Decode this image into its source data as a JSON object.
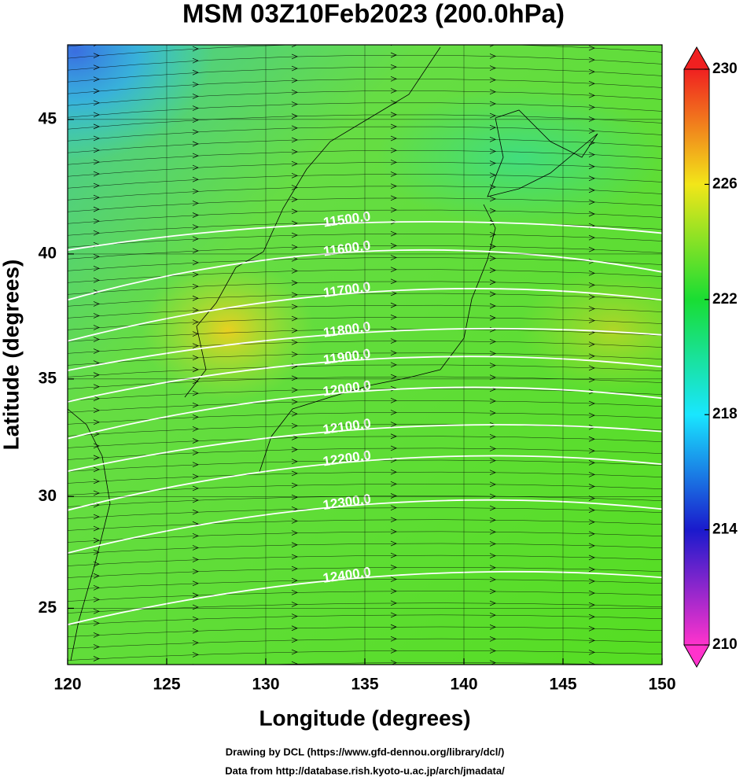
{
  "chart_data": {
    "type": "contour",
    "title": "MSM 03Z10Feb2023 (200.0hPa)",
    "x_label": "Longitude (degrees)",
    "y_label": "Latitude  (degrees)",
    "xlim": [
      120,
      150
    ],
    "ylim": [
      22.4,
      47.6
    ],
    "y_scale": "mercator",
    "xticks": [
      120,
      125,
      130,
      135,
      140,
      145,
      150
    ],
    "yticks": [
      25,
      30,
      35,
      40,
      45
    ],
    "contour_color": "#ffffff",
    "contour_lons": [
      120,
      135,
      150
    ],
    "contours": [
      {
        "value": 11500,
        "label": "11500.0",
        "lats": [
          40.15,
          41.2,
          40.8
        ]
      },
      {
        "value": 11600,
        "label": "11600.0",
        "lats": [
          38.2,
          40.1,
          39.3
        ]
      },
      {
        "value": 11700,
        "label": "11700.0",
        "lats": [
          36.55,
          38.5,
          38.2
        ]
      },
      {
        "value": 11800,
        "label": "11800.0",
        "lats": [
          35.35,
          36.9,
          36.8
        ]
      },
      {
        "value": 11900,
        "label": "11900.0",
        "lats": [
          34.05,
          35.8,
          35.5
        ]
      },
      {
        "value": 12000,
        "label": "12000.0",
        "lats": [
          32.5,
          34.5,
          34.2
        ]
      },
      {
        "value": 12100,
        "label": "12100.0",
        "lats": [
          31.1,
          32.9,
          32.8
        ]
      },
      {
        "value": 12200,
        "label": "12200.0",
        "lats": [
          29.4,
          31.55,
          31.4
        ]
      },
      {
        "value": 12300,
        "label": "12300.0",
        "lats": [
          27.5,
          29.65,
          29.45
        ]
      },
      {
        "value": 12400,
        "label": "12400.0",
        "lats": [
          24.25,
          26.4,
          26.4
        ]
      }
    ],
    "colorbar": {
      "range": [
        210,
        230
      ],
      "ticks": [
        210,
        214,
        218,
        222,
        226,
        230
      ],
      "colors": [
        "#ff33cc",
        "#1a1acc",
        "#19e6ff",
        "#19dd33",
        "#f2e619",
        "#f02020"
      ]
    },
    "credits": [
      "Drawing by DCL (https://www.gfd-dennou.org/library/dcl/)",
      "Data from http://database.rish.kyoto-u.ac.jp/arch/jmadata/"
    ]
  }
}
